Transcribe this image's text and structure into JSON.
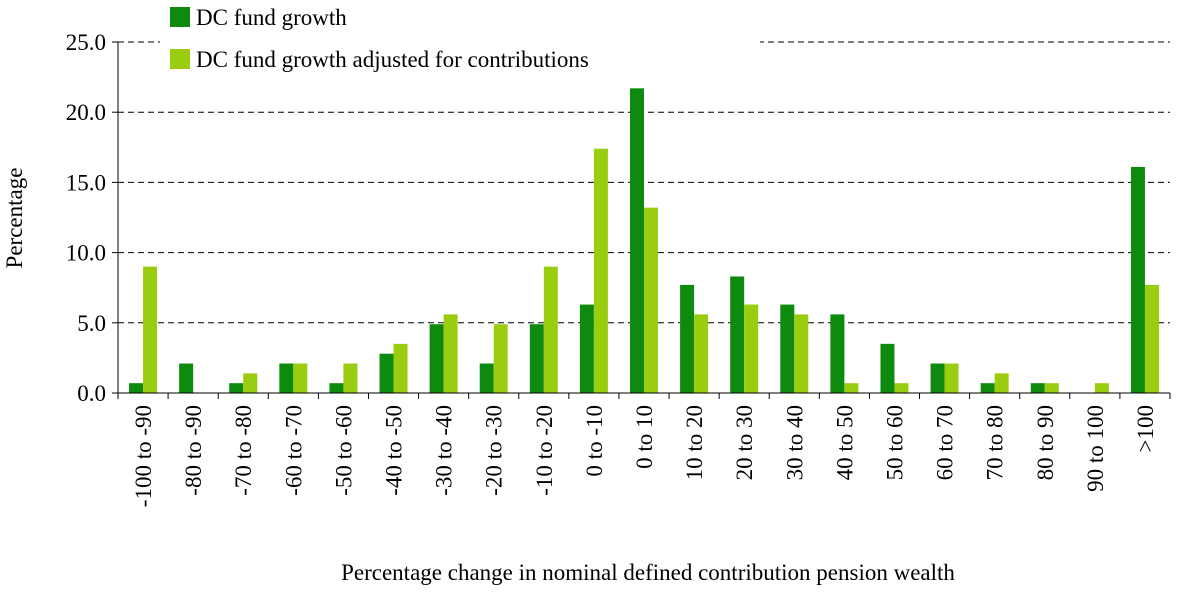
{
  "chart_data": {
    "type": "bar",
    "x_label": "Percentage change in nominal defined contribution pension wealth",
    "y_label": "Percentage",
    "categories": [
      "-100 to -90",
      "-80 to -90",
      "-70 to -80",
      "-60 to -70",
      "-50 to -60",
      "-40 to -50",
      "-30 to -40",
      "-20 to -30",
      "-10 to -20",
      "0 to -10",
      "0 to 10",
      "10 to 20",
      "20 to 30",
      "30 to 40",
      "40 to 50",
      "50 to 60",
      "60 to 70",
      "70 to 80",
      "80 to 90",
      "90 to 100",
      ">100"
    ],
    "series": [
      {
        "name": "DC fund growth",
        "color": "#0e8a0e",
        "values": [
          0.7,
          2.1,
          0.7,
          2.1,
          0.7,
          2.8,
          4.9,
          2.1,
          4.9,
          6.3,
          21.7,
          7.7,
          8.3,
          6.3,
          5.6,
          3.5,
          2.1,
          0.7,
          0.7,
          0,
          16.1
        ]
      },
      {
        "name": "DC fund growth adjusted for contributions",
        "color": "#9acd10",
        "values": [
          9.0,
          0,
          1.4,
          2.1,
          2.1,
          3.5,
          5.6,
          4.9,
          9.0,
          17.4,
          13.2,
          5.6,
          6.3,
          5.6,
          0.7,
          0.7,
          2.1,
          1.4,
          0.7,
          0.7,
          7.7
        ]
      }
    ],
    "ylim": [
      0,
      25
    ],
    "yticks": [
      {
        "value": 0,
        "label": "0.0"
      },
      {
        "value": 5,
        "label": "5.0"
      },
      {
        "value": 10,
        "label": "10.0"
      },
      {
        "value": 15,
        "label": "15.0"
      },
      {
        "value": 20,
        "label": "20.0"
      },
      {
        "value": 25,
        "label": "25.0"
      }
    ],
    "grid": true,
    "legend": "top-left"
  }
}
